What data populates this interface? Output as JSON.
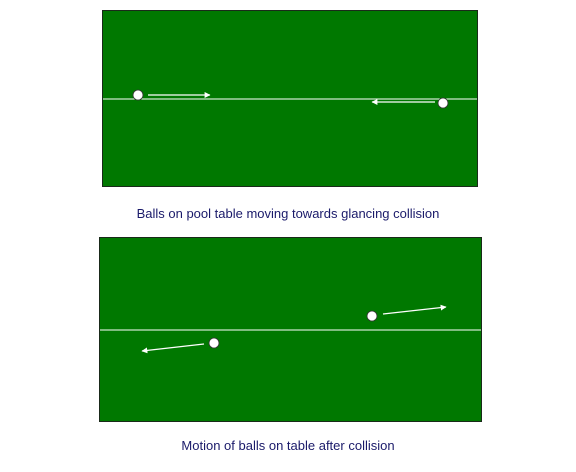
{
  "captions": {
    "before": "Balls on pool table moving towards glancing collision",
    "after": "Motion of balls on table after collision"
  },
  "colors": {
    "table": "#007800",
    "border": "#1a2a1a",
    "line": "#ffffff",
    "ball": "#ffffff",
    "arrow": "#ffffff",
    "caption": "#1a1a6a"
  },
  "icons": {
    "ball": "white-circle",
    "arrow": "straight-arrow"
  }
}
